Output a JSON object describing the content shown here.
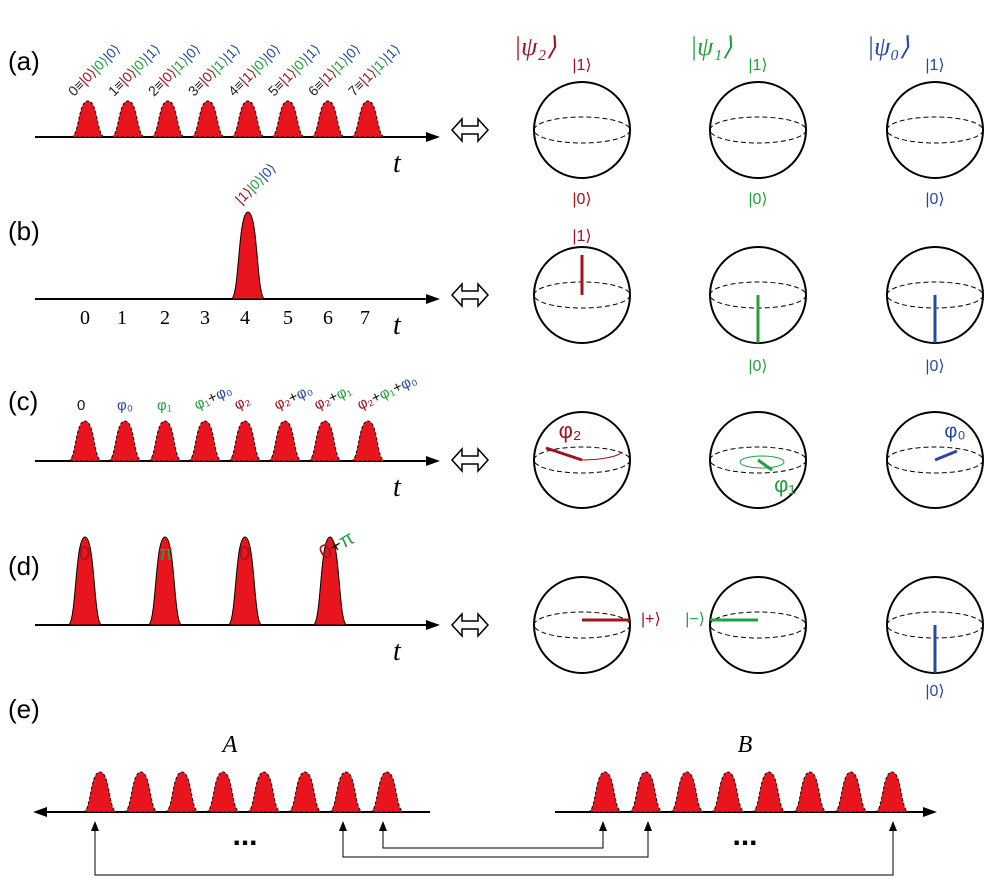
{
  "panels": [
    "(a)",
    "(b)",
    "(c)",
    "(d)",
    "(e)"
  ],
  "ket_colors": [
    "#a0141e",
    "#22a03c",
    "#2848a8"
  ],
  "time_label": [
    "t",
    "t",
    "t",
    "t"
  ],
  "a": {
    "states": [
      {
        "index": "0≡",
        "kets": [
          "|0⟩",
          "|0⟩",
          "|0⟩"
        ]
      },
      {
        "index": "1≡",
        "kets": [
          "|0⟩",
          "|0⟩",
          "|1⟩"
        ]
      },
      {
        "index": "2≡",
        "kets": [
          "|0⟩",
          "|1⟩",
          "|0⟩"
        ]
      },
      {
        "index": "3≡",
        "kets": [
          "|0⟩",
          "|1⟩",
          "|1⟩"
        ]
      },
      {
        "index": "4≡",
        "kets": [
          "|1⟩",
          "|0⟩",
          "|0⟩"
        ]
      },
      {
        "index": "5≡",
        "kets": [
          "|1⟩",
          "|0⟩",
          "|1⟩"
        ]
      },
      {
        "index": "6≡",
        "kets": [
          "|1⟩",
          "|1⟩",
          "|0⟩"
        ]
      },
      {
        "index": "7≡",
        "kets": [
          "|1⟩",
          "|1⟩",
          "|1⟩"
        ]
      }
    ]
  },
  "b": {
    "kets": [
      "|1⟩",
      "|0⟩",
      "|0⟩"
    ],
    "ticks": [
      "0",
      "1",
      "2",
      "3",
      "4",
      "5",
      "6",
      "7"
    ]
  },
  "c": {
    "labels": [
      [
        {
          "text": "0",
          "color": "#111111"
        }
      ],
      [
        {
          "text": "φ₀",
          "color": "#2848a8"
        }
      ],
      [
        {
          "text": "φ₁",
          "color": "#22a03c"
        }
      ],
      [
        {
          "text": "φ₁",
          "color": "#22a03c"
        },
        {
          "text": "+",
          "color": "#111111"
        },
        {
          "text": "φ₀",
          "color": "#2848a8"
        }
      ],
      [
        {
          "text": "φ₂",
          "color": "#a0141e"
        }
      ],
      [
        {
          "text": "φ₂",
          "color": "#a0141e"
        },
        {
          "text": "+",
          "color": "#111111"
        },
        {
          "text": "φ₀",
          "color": "#2848a8"
        }
      ],
      [
        {
          "text": "φ₂",
          "color": "#a0141e"
        },
        {
          "text": "+",
          "color": "#111111"
        },
        {
          "text": "φ₁",
          "color": "#22a03c"
        }
      ],
      [
        {
          "text": "φ₂",
          "color": "#a0141e"
        },
        {
          "text": "+",
          "color": "#111111"
        },
        {
          "text": "φ₁",
          "color": "#22a03c"
        },
        {
          "text": "+",
          "color": "#111111"
        },
        {
          "text": "φ₀",
          "color": "#2848a8"
        }
      ]
    ]
  },
  "d": {
    "labels": [
      [
        {
          "text": "0",
          "color": "#a0141e"
        }
      ],
      [
        {
          "text": "π",
          "color": "#22a03c"
        }
      ],
      [
        {
          "text": "0",
          "color": "#a0141e"
        }
      ],
      [
        {
          "text": "0",
          "color": "#a0141e"
        },
        {
          "text": "+",
          "color": "#111111"
        },
        {
          "text": "π",
          "color": "#22a03c"
        }
      ]
    ]
  },
  "spheres": {
    "headings": [
      "|ψ₂⟩",
      "|ψ₁⟩",
      "|ψ₀⟩"
    ],
    "a_top": [
      "|1⟩",
      "|1⟩",
      "|1⟩"
    ],
    "a_bottom": [
      "|0⟩",
      "|0⟩",
      "|0⟩"
    ],
    "b": [
      "|1⟩",
      "|0⟩",
      "|0⟩"
    ],
    "c": [
      "φ₂",
      "φ₁",
      "φ₀"
    ],
    "d": [
      "|+⟩",
      "|−⟩",
      "|0⟩"
    ]
  },
  "e": {
    "A": "A",
    "B": "B",
    "dots": [
      "...",
      "..."
    ]
  }
}
